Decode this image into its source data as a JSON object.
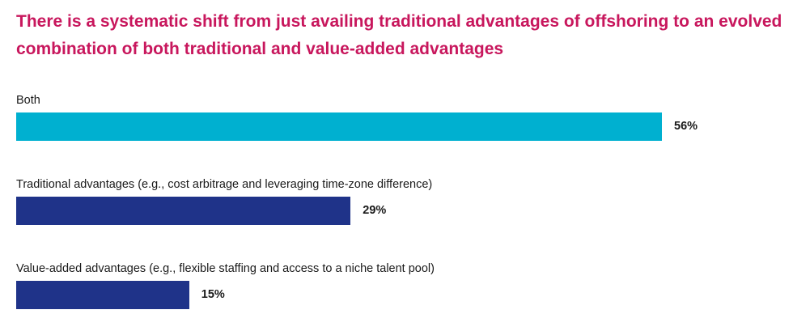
{
  "chart_data": {
    "type": "bar",
    "orientation": "horizontal",
    "title": "There is a systematic shift from just availing traditional advantages of offshoring to an evolved combination of both traditional and value-added advantages",
    "categories": [
      "Both",
      "Traditional advantages (e.g., cost arbitrage and leveraging time-zone difference)",
      "Value-added advantages (e.g., flexible staffing and access to a niche talent pool)"
    ],
    "values": [
      56,
      29,
      15
    ],
    "value_labels": [
      "56%",
      "29%",
      "15%"
    ],
    "bar_colors": [
      "#00b0d0",
      "#1f3389",
      "#1f3389"
    ],
    "title_color": "#c8175d",
    "grid": false,
    "legend": "none"
  }
}
